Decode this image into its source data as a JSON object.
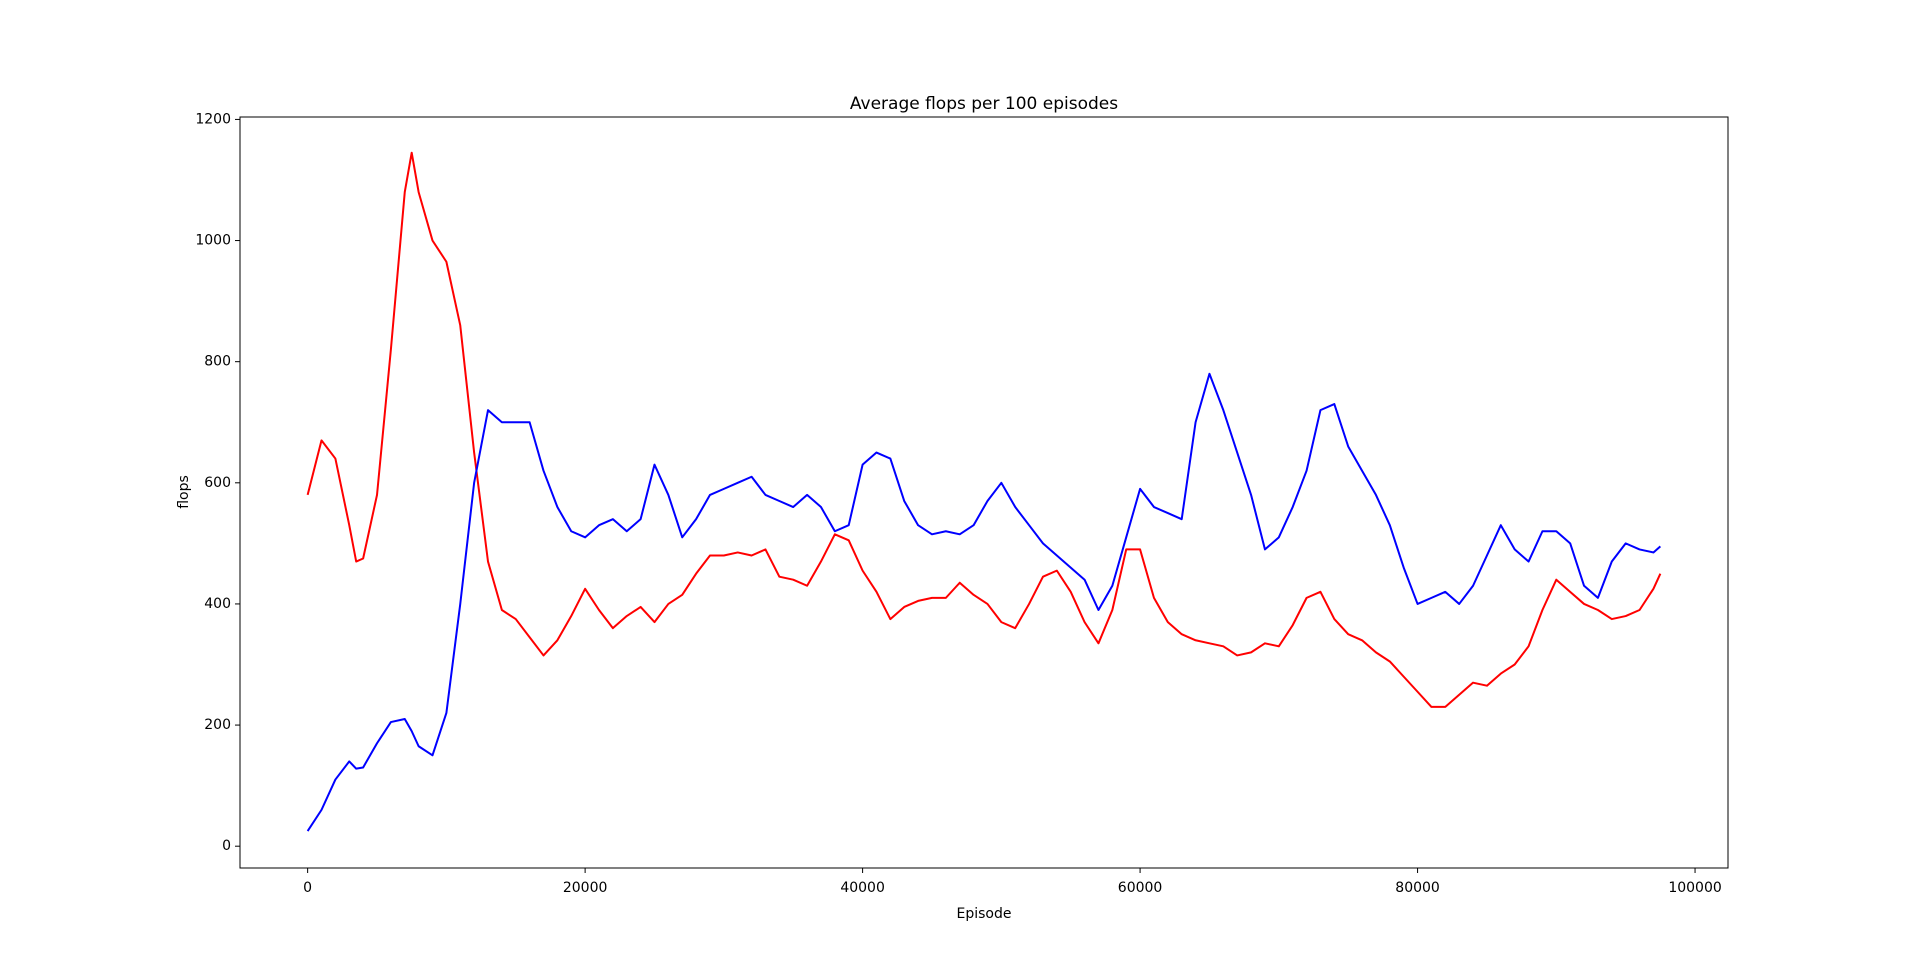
{
  "chart_data": {
    "type": "line",
    "title": "Average flops per 100 episodes",
    "x_label": "Episode",
    "y_label": "flops",
    "x": [
      0,
      1000,
      2000,
      3000,
      3500,
      4000,
      5000,
      6000,
      7000,
      7500,
      8000,
      9000,
      10000,
      11000,
      12000,
      13000,
      14000,
      15000,
      16000,
      17000,
      18000,
      19000,
      20000,
      21000,
      22000,
      23000,
      24000,
      25000,
      26000,
      27000,
      28000,
      29000,
      30000,
      31000,
      32000,
      33000,
      34000,
      35000,
      36000,
      37000,
      38000,
      39000,
      40000,
      41000,
      42000,
      43000,
      44000,
      45000,
      46000,
      47000,
      48000,
      49000,
      50000,
      51000,
      52000,
      53000,
      54000,
      55000,
      56000,
      57000,
      58000,
      59000,
      60000,
      61000,
      62000,
      63000,
      64000,
      65000,
      66000,
      67000,
      68000,
      69000,
      70000,
      71000,
      72000,
      73000,
      74000,
      75000,
      76000,
      77000,
      78000,
      79000,
      80000,
      81000,
      82000,
      83000,
      84000,
      85000,
      86000,
      87000,
      88000,
      89000,
      90000,
      91000,
      92000,
      93000,
      94000,
      95000,
      96000,
      97000,
      97500
    ],
    "series": [
      {
        "color": "#ff0000",
        "values": [
          580,
          670,
          640,
          530,
          470,
          475,
          580,
          820,
          1080,
          1145,
          1080,
          1000,
          965,
          860,
          650,
          470,
          390,
          375,
          345,
          315,
          340,
          380,
          425,
          390,
          360,
          380,
          395,
          370,
          400,
          415,
          450,
          480,
          480,
          485,
          480,
          490,
          445,
          440,
          430,
          470,
          515,
          505,
          455,
          420,
          375,
          395,
          405,
          410,
          410,
          435,
          415,
          400,
          370,
          360,
          400,
          445,
          455,
          420,
          370,
          335,
          390,
          490,
          490,
          410,
          370,
          350,
          340,
          335,
          330,
          315,
          320,
          335,
          330,
          365,
          410,
          420,
          375,
          350,
          340,
          320,
          305,
          280,
          255,
          230,
          230,
          250,
          270,
          265,
          285,
          300,
          330,
          390,
          440,
          420,
          400,
          390,
          375,
          380,
          390,
          425,
          450
        ]
      },
      {
        "color": "#0000ff",
        "values": [
          25,
          60,
          110,
          140,
          128,
          130,
          170,
          205,
          210,
          190,
          165,
          150,
          220,
          400,
          600,
          720,
          700,
          700,
          700,
          620,
          560,
          520,
          510,
          530,
          540,
          520,
          540,
          630,
          580,
          510,
          540,
          580,
          590,
          600,
          610,
          580,
          570,
          560,
          580,
          560,
          520,
          530,
          630,
          650,
          640,
          570,
          530,
          515,
          520,
          515,
          530,
          570,
          600,
          560,
          530,
          500,
          480,
          460,
          440,
          390,
          430,
          510,
          590,
          560,
          550,
          540,
          700,
          780,
          720,
          650,
          580,
          490,
          510,
          560,
          620,
          720,
          730,
          660,
          620,
          580,
          530,
          460,
          400,
          410,
          420,
          400,
          430,
          480,
          530,
          490,
          470,
          520,
          520,
          500,
          430,
          410,
          470,
          500,
          490,
          485,
          495
        ]
      }
    ],
    "xlim": [
      -4875,
      102375
    ],
    "ylim": [
      -36,
      1204
    ],
    "xticks": [
      0,
      20000,
      40000,
      60000,
      80000,
      100000
    ],
    "yticks": [
      0,
      200,
      400,
      600,
      800,
      1000,
      1200
    ]
  }
}
